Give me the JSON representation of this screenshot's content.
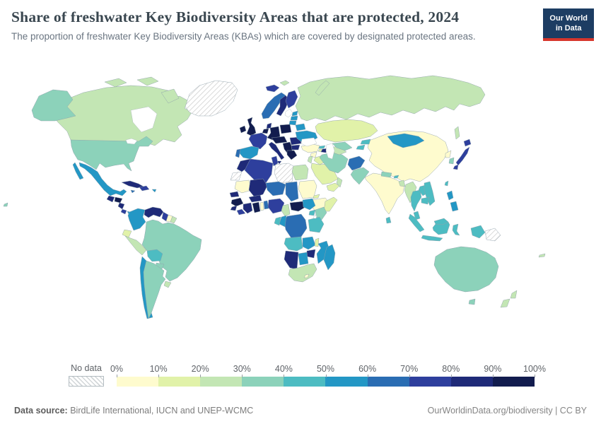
{
  "header": {
    "title": "Share of freshwater Key Biodiversity Areas that are protected, 2024",
    "subtitle": "The proportion of freshwater Key Biodiversity Areas (KBAs) which are covered by designated protected areas.",
    "logo": {
      "line1": "Our World",
      "line2": "in Data",
      "bg_color": "#1d3d63",
      "accent_color": "#d7362c"
    }
  },
  "legend": {
    "no_data_label": "No data",
    "tick_labels": [
      "0%",
      "10%",
      "20%",
      "30%",
      "40%",
      "50%",
      "60%",
      "70%",
      "80%",
      "90%",
      "100%"
    ],
    "colors": [
      "#fefbce",
      "#e1f2a9",
      "#c3e6b4",
      "#8cd2ba",
      "#4dbcc2",
      "#2397c5",
      "#2a6db3",
      "#2e3f9d",
      "#1f2a78",
      "#121c4e"
    ]
  },
  "footer": {
    "source_label": "Data source:",
    "source_text": " BirdLife International, IUCN and UNEP-WCMC",
    "attribution": "OurWorldinData.org/biodiversity | CC BY"
  },
  "chart_data": {
    "type": "choropleth",
    "title": "Share of freshwater Key Biodiversity Areas that are protected",
    "year": 2024,
    "unit": "%",
    "bins": [
      0,
      10,
      20,
      30,
      40,
      50,
      60,
      70,
      80,
      90,
      100
    ],
    "legend_position": "bottom",
    "values": {
      "United States": 35,
      "Canada": 25,
      "Greenland": null,
      "Mexico": 55,
      "Guatemala": 85,
      "Honduras": 95,
      "Nicaragua": 85,
      "Costa Rica": 75,
      "Panama": 55,
      "Cuba": 85,
      "Dominican Republic": 75,
      "Jamaica": 65,
      "Puerto Rico": 55,
      "Colombia": 55,
      "Venezuela": 85,
      "Guyana": 75,
      "Suriname": 5,
      "French Guiana": 25,
      "Ecuador": 15,
      "Peru": 25,
      "Brazil": 35,
      "Bolivia": 45,
      "Paraguay": 35,
      "Uruguay": 25,
      "Chile": 55,
      "Argentina": 35,
      "Iceland": 75,
      "Ireland": 95,
      "United Kingdom": 95,
      "Norway": 65,
      "Sweden": 85,
      "Finland": 75,
      "Denmark": 85,
      "Estonia": 55,
      "Latvia": 55,
      "Lithuania": 55,
      "Belarus": 55,
      "Poland": 95,
      "Germany": 95,
      "Netherlands": 95,
      "France": 75,
      "Spain": 55,
      "Portugal": 65,
      "Italy": 85,
      "Austria": 95,
      "Serbia": 95,
      "Romania": 85,
      "Bulgaria": 85,
      "Greece": 95,
      "Ukraine": 55,
      "Russia": 25,
      "Svalbard": 25,
      "Turkey": 5,
      "Georgia": 45,
      "Armenia": 15,
      "Azerbaijan": 85,
      "Syria": 5,
      "Iraq": 15,
      "Jordan": 25,
      "Saudi Arabia": 15,
      "Yemen": 15,
      "Oman": 25,
      "Iran": 35,
      "Afghanistan": 65,
      "Turkmenistan": 25,
      "Uzbekistan": 35,
      "Kazakhstan": 15,
      "Kyrgyzstan": 45,
      "Tajikistan": 45,
      "Pakistan": 35,
      "India": 5,
      "Sri Lanka": 45,
      "Nepal": 35,
      "Bhutan": 45,
      "Bangladesh": 25,
      "China": 5,
      "Mongolia": 55,
      "North Korea": 5,
      "South Korea": 35,
      "Japan": 75,
      "Taiwan": 45,
      "Myanmar": 25,
      "Thailand": 45,
      "Laos": 45,
      "Vietnam": 45,
      "Cambodia": 45,
      "Malaysia": 45,
      "Indonesia": 45,
      "Philippines": 55,
      "Papua New Guinea": null,
      "Australia": 35,
      "New Zealand": 25,
      "New Caledonia": 25,
      "Morocco": 85,
      "Western Sahara": null,
      "Algeria": 75,
      "Tunisia": 75,
      "Libya": null,
      "Egypt": 25,
      "Mauritania": 5,
      "Mali": 85,
      "Niger": 65,
      "Chad": 65,
      "Sudan": 5,
      "Eritrea": 15,
      "Ethiopia": 5,
      "Somalia": 15,
      "Senegal": 85,
      "Guinea": 95,
      "Sierra Leone": 85,
      "Liberia": 75,
      "Cote d'Ivoire": 85,
      "Ghana": 95,
      "Togo": 5,
      "Benin": 65,
      "Burkina Faso": 85,
      "Nigeria": 75,
      "Cameroon": 25,
      "Central African Republic": 95,
      "South Sudan": 55,
      "Uganda": 45,
      "Kenya": 35,
      "Democratic Republic of Congo": 65,
      "Congo": 55,
      "Gabon": 45,
      "Tanzania": 45,
      "Angola": 45,
      "Zambia": 55,
      "Malawi": 15,
      "Mozambique": 55,
      "Zimbabwe": 85,
      "Botswana": 55,
      "Namibia": 85,
      "South Africa": 25,
      "Lesotho": 5,
      "Madagascar": 55
    }
  }
}
